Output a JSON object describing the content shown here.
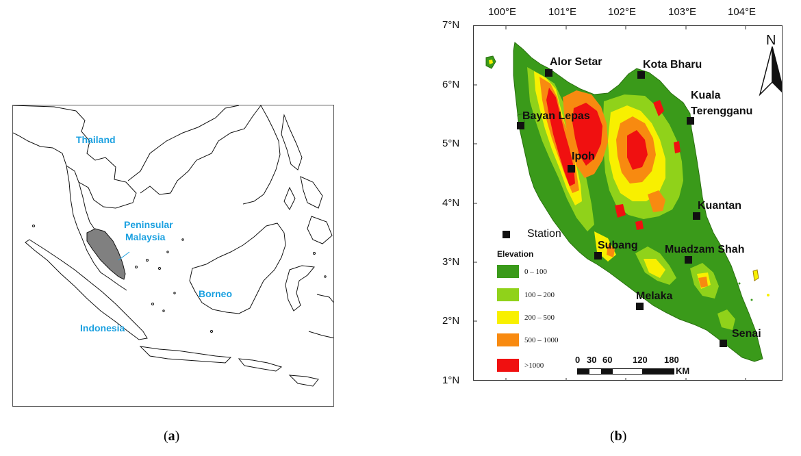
{
  "panel_a": {
    "labels": {
      "thailand": "Thailand",
      "peninsular": "Peninsular",
      "malaysia": "Malaysia",
      "borneo": "Borneo",
      "indonesia": "Indonesia"
    },
    "highlight_color": "#808080",
    "caption_letter": "a"
  },
  "panel_b": {
    "lon_ticks": [
      "100°E",
      "101°E",
      "102°E",
      "103°E",
      "104°E"
    ],
    "lat_ticks": [
      "7°N",
      "6°N",
      "5°N",
      "4°N",
      "3°N",
      "2°N",
      "1°N"
    ],
    "stations": [
      {
        "name": "Alor Setar"
      },
      {
        "name": "Kota Bharu"
      },
      {
        "name": "Kuala"
      },
      {
        "name": "Terengganu"
      },
      {
        "name": "Bayan Lepas"
      },
      {
        "name": "Ipoh"
      },
      {
        "name": "Kuantan"
      },
      {
        "name": "Subang"
      },
      {
        "name": "Muadzam Shah"
      },
      {
        "name": "Melaka"
      },
      {
        "name": "Senai"
      }
    ],
    "legend": {
      "station_label": "Station",
      "elevation_title": "Elevation",
      "classes": [
        {
          "label": "0 – 100",
          "color": "#3a9a1a"
        },
        {
          "label": "100 – 200",
          "color": "#90d21a"
        },
        {
          "label": "200 – 500",
          "color": "#f8f000"
        },
        {
          "label": "500 – 1000",
          "color": "#f88a10"
        },
        {
          "label": ">1000",
          "color": "#f01010"
        }
      ]
    },
    "scale_bar": {
      "ticks": [
        "0",
        "30",
        "60",
        "120",
        "180"
      ],
      "unit": "KM"
    },
    "north_label": "N",
    "caption_letter": "b"
  }
}
